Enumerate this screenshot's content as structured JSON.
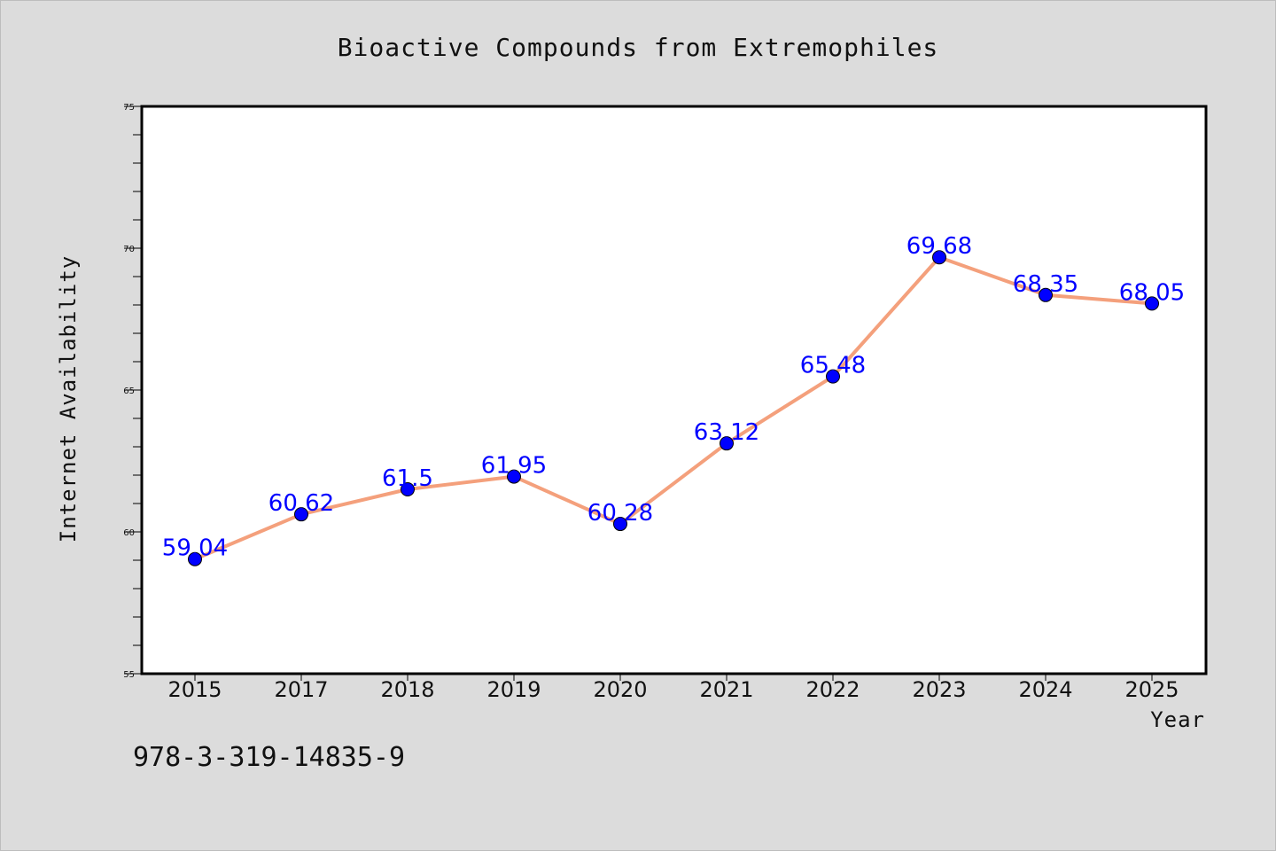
{
  "chart_data": {
    "type": "line",
    "title": "Bioactive Compounds from Extremophiles",
    "xlabel": "Year",
    "ylabel": "Internet Availability",
    "categories": [
      "2015",
      "2017",
      "2018",
      "2019",
      "2020",
      "2021",
      "2022",
      "2023",
      "2024",
      "2025"
    ],
    "series": [
      {
        "values": [
          59.04,
          60.62,
          61.5,
          61.95,
          60.28,
          63.12,
          65.48,
          69.68,
          68.35,
          68.05
        ],
        "labels": [
          "59.04",
          "60.62",
          "61.5",
          "61.95",
          "60.28",
          "63.12",
          "65.48",
          "69.68",
          "68.35",
          "68.05"
        ],
        "line_color": "#f4a07c",
        "marker_color": "#0000ff"
      }
    ],
    "ylim": [
      55,
      75
    ],
    "yticks": [
      "55",
      "60",
      "65",
      "70",
      "75"
    ],
    "grid": false,
    "legend": "none"
  },
  "footnote": "978-3-319-14835-9"
}
